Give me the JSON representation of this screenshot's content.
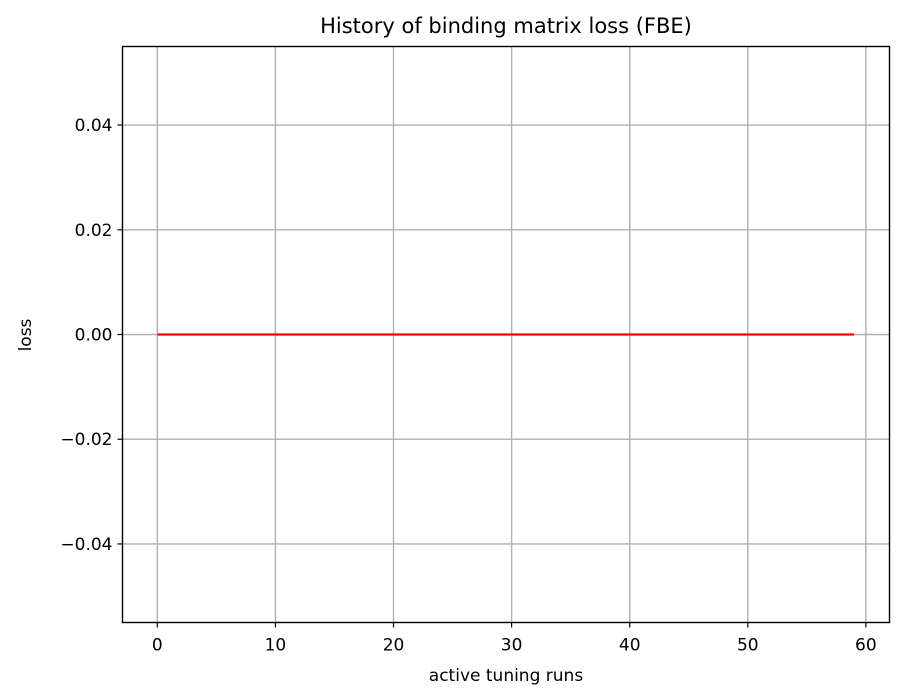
{
  "chart_data": {
    "type": "line",
    "title": "History of binding matrix loss (FBE)",
    "xlabel": "active tuning runs",
    "ylabel": "loss",
    "xlim": [
      -2.95,
      62.0
    ],
    "ylim": [
      -0.055,
      0.055
    ],
    "xticks": [
      0,
      10,
      20,
      30,
      40,
      50,
      60
    ],
    "yticks": [
      -0.04,
      -0.02,
      0.0,
      0.02,
      0.04
    ],
    "xtick_labels": [
      "0",
      "10",
      "20",
      "30",
      "40",
      "50",
      "60"
    ],
    "ytick_labels": [
      "−0.04",
      "−0.02",
      "0.00",
      "0.02",
      "0.04"
    ],
    "grid": true,
    "series": [
      {
        "color": "#ff0000",
        "x": [
          0,
          59
        ],
        "y": [
          0.0,
          0.0
        ]
      }
    ]
  }
}
